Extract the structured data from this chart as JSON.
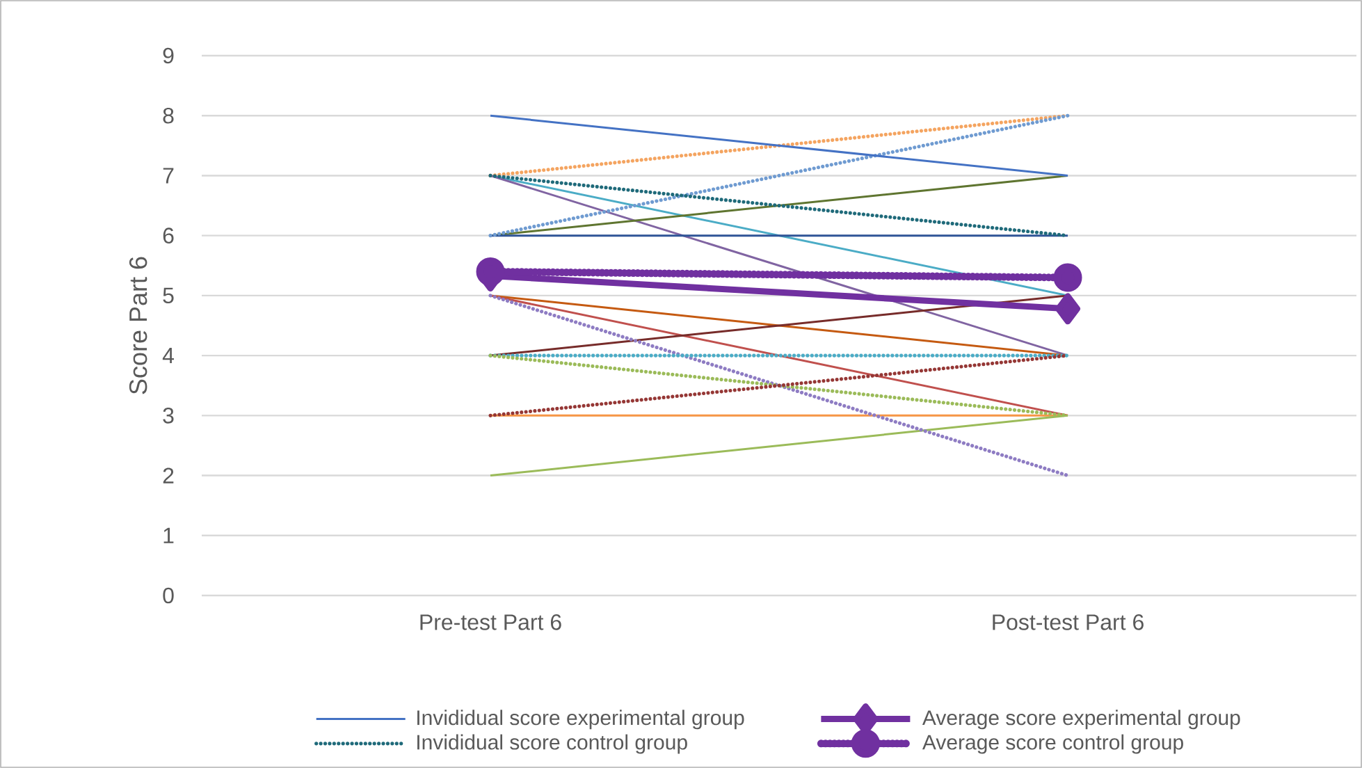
{
  "chart_data": {
    "type": "line",
    "ylabel": "Score Part 6",
    "categories": [
      "Pre-test Part 6",
      "Post-test Part 6"
    ],
    "ylim": [
      0,
      9
    ],
    "yticks": [
      0,
      1,
      2,
      3,
      4,
      5,
      6,
      7,
      8,
      9
    ],
    "grid": "y",
    "legend": "bottom",
    "series": [
      {
        "color": "#4bacc6",
        "values": [
          7,
          5
        ],
        "line_style": "solid"
      },
      {
        "color": "#8064a2",
        "values": [
          7,
          4
        ],
        "line_style": "solid"
      },
      {
        "color": "#5f7530",
        "values": [
          6,
          7
        ],
        "line_style": "solid"
      },
      {
        "color": "#2f5597",
        "values": [
          6,
          6
        ],
        "line_style": "solid"
      },
      {
        "color": "#c55a11",
        "values": [
          5,
          4
        ],
        "line_style": "solid"
      },
      {
        "color": "#c0504d",
        "values": [
          5,
          3
        ],
        "line_style": "solid"
      },
      {
        "color": "#772c2a",
        "values": [
          4,
          5
        ],
        "line_style": "solid"
      },
      {
        "color": "#f79646",
        "values": [
          3,
          3
        ],
        "line_style": "solid"
      },
      {
        "color": "#9bbb59",
        "values": [
          2,
          3
        ],
        "line_style": "solid"
      },
      {
        "color": "#f4a460",
        "values": [
          7,
          8
        ],
        "line_style": "dotted"
      },
      {
        "color": "#6f9bd1",
        "values": [
          6,
          8
        ],
        "line_style": "dotted"
      },
      {
        "color": "#8e7cc3",
        "values": [
          5,
          2
        ],
        "line_style": "dotted"
      },
      {
        "color": "#4bacc6",
        "values": [
          4,
          4
        ],
        "line_style": "dotted"
      },
      {
        "color": "#9bbb59",
        "values": [
          4,
          3
        ],
        "line_style": "dotted"
      },
      {
        "color": "#953735",
        "values": [
          3,
          4
        ],
        "line_style": "dotted"
      },
      {
        "name": "Invididual score experimental group",
        "color": "#4472c4",
        "values": [
          8,
          7
        ],
        "line_style": "solid"
      },
      {
        "name": "Average score experimental group",
        "color": "#7030a0",
        "values": [
          5.33,
          4.78
        ],
        "line_style": "solid",
        "marker": "diamond"
      },
      {
        "name": "Invididual score control group",
        "color": "#1f6a7a",
        "values": [
          7,
          6
        ],
        "line_style": "dotted"
      },
      {
        "name": "Average score control group",
        "color": "#7030a0",
        "values": [
          5.4,
          5.3
        ],
        "line_style": "dotted",
        "marker": "circle"
      }
    ]
  }
}
